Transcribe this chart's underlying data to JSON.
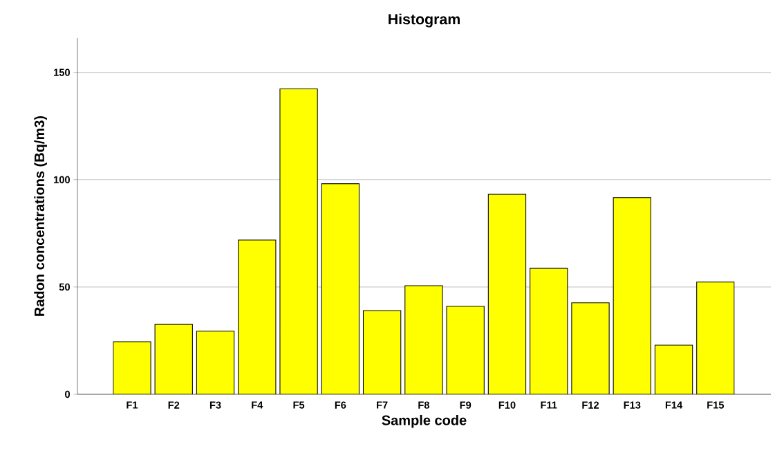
{
  "chart_data": {
    "type": "bar",
    "title": "Histogram",
    "xlabel": "Sample code",
    "ylabel": "Radon concentrations (Bq/m3)",
    "categories": [
      "F1",
      "F2",
      "F3",
      "F4",
      "F5",
      "F6",
      "F7",
      "F8",
      "F9",
      "F10",
      "F11",
      "F12",
      "F13",
      "F14",
      "F15"
    ],
    "values": [
      24.5,
      32.6,
      29.4,
      71.9,
      142.3,
      98.1,
      39.0,
      50.6,
      41.0,
      93.2,
      58.7,
      42.6,
      91.6,
      22.9,
      52.3
    ],
    "color": "#ffff00",
    "ylim": [
      0,
      166
    ],
    "yticks": [
      0,
      50,
      100,
      150
    ],
    "grid": "y"
  }
}
